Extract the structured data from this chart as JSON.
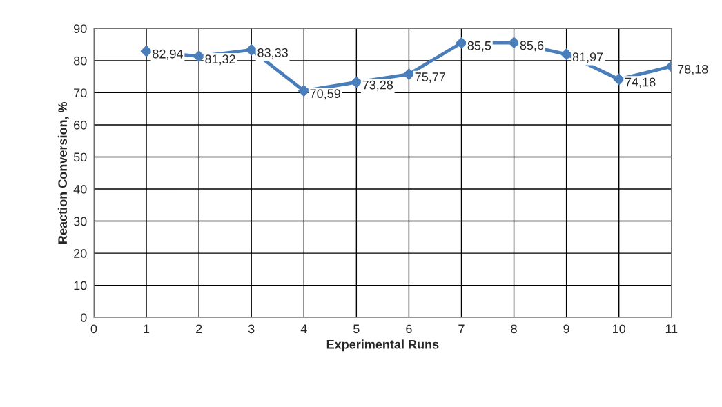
{
  "chart_data": {
    "type": "line",
    "xlabel": "Experimental Runs",
    "ylabel": "Reaction Conversion, %",
    "x": [
      1,
      2,
      3,
      4,
      5,
      6,
      7,
      8,
      9,
      10,
      11
    ],
    "series": [
      {
        "color": "#4a7ebb",
        "values": [
          82.94,
          81.32,
          83.33,
          70.59,
          73.28,
          75.77,
          85.5,
          85.6,
          81.97,
          74.18,
          78.18
        ],
        "value_labels": [
          "82,94",
          "81,32",
          "83,33",
          "70,59",
          "73,28",
          "75,77",
          "85,5",
          "85,6",
          "81,97",
          "74,18",
          "78,18"
        ]
      }
    ],
    "xlim": [
      0,
      11
    ],
    "xticks": [
      0,
      1,
      2,
      3,
      4,
      5,
      6,
      7,
      8,
      9,
      10,
      11
    ],
    "ylim": [
      0,
      90
    ],
    "yticks": [
      0,
      10,
      20,
      30,
      40,
      50,
      60,
      70,
      80,
      90
    ],
    "grid": true,
    "marker": "diamond",
    "line_style": "solid"
  }
}
